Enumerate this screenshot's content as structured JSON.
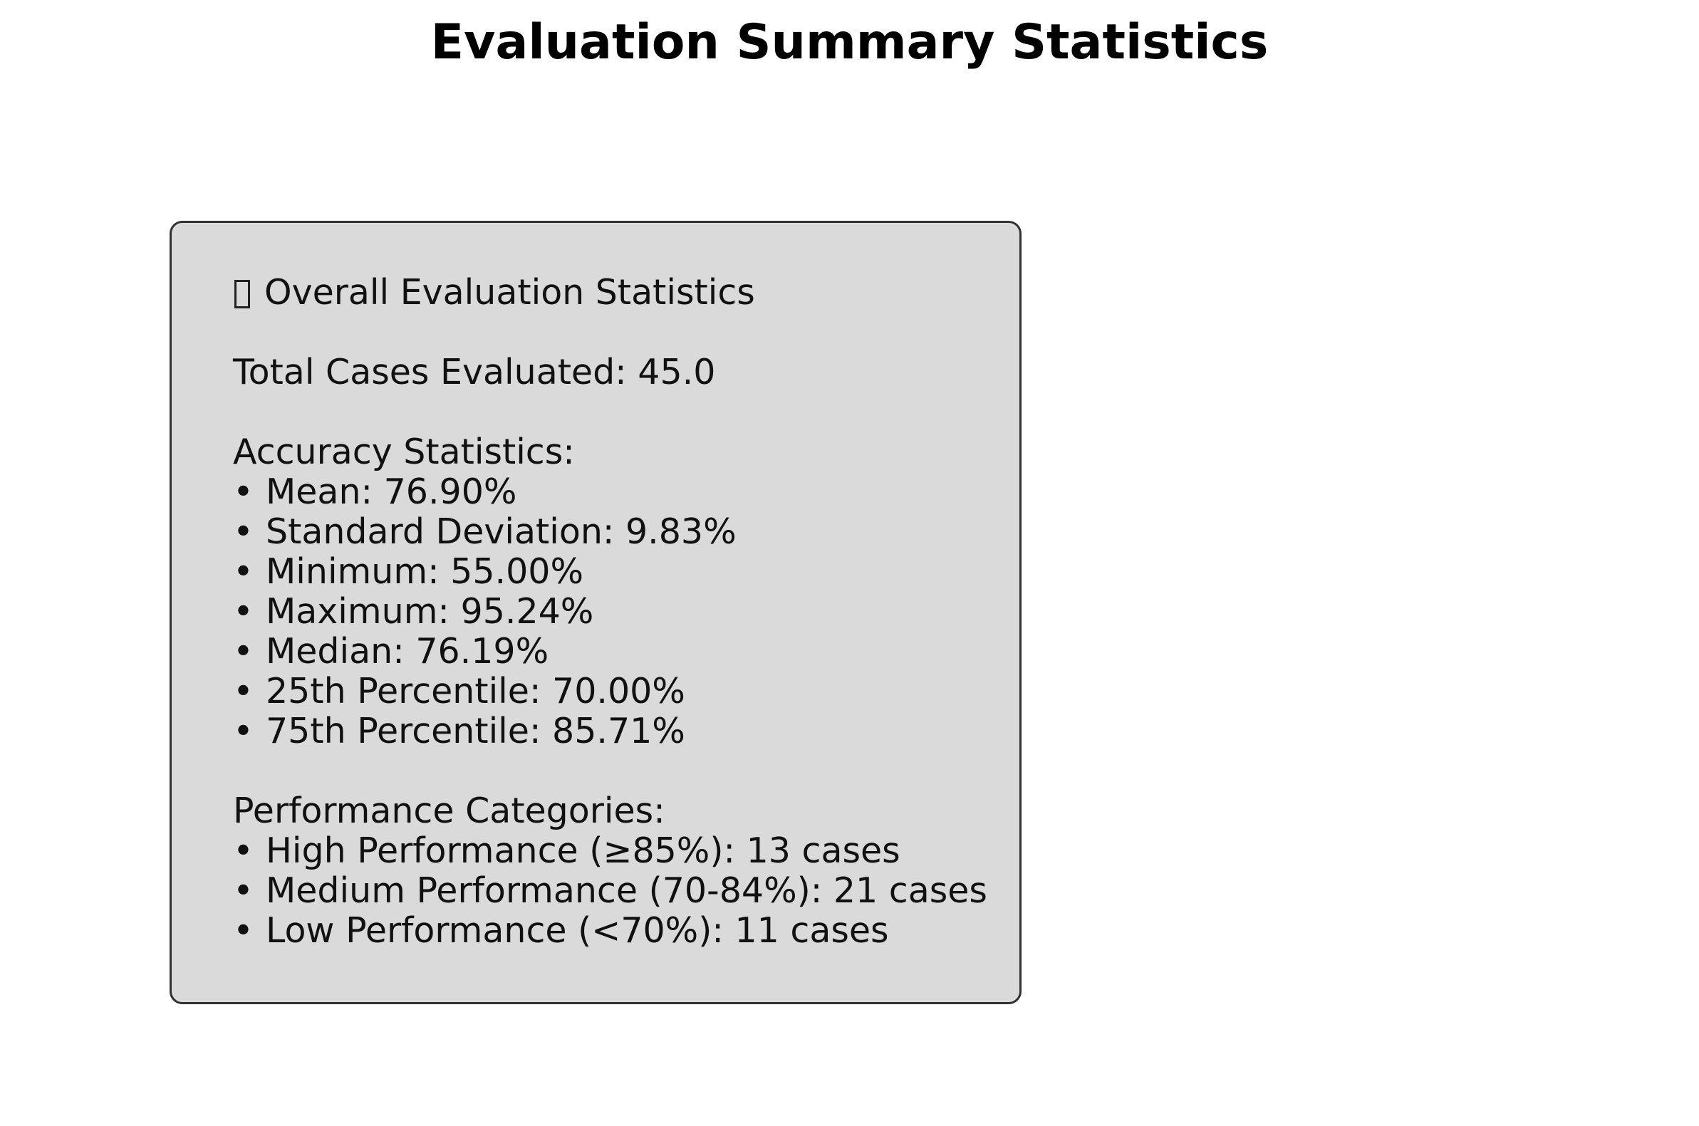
{
  "title": "Evaluation Summary Statistics",
  "box": {
    "heading": "Overall Evaluation Statistics",
    "heading_icon": "missing-glyph-icon",
    "total_cases_label": "Total Cases Evaluated:",
    "total_cases_value": "45.0",
    "accuracy": {
      "heading": "Accuracy Statistics:",
      "items": [
        {
          "label": "Mean:",
          "value": "76.90%"
        },
        {
          "label": "Standard Deviation:",
          "value": "9.83%"
        },
        {
          "label": "Minimum:",
          "value": "55.00%"
        },
        {
          "label": "Maximum:",
          "value": "95.24%"
        },
        {
          "label": "Median:",
          "value": "76.19%"
        },
        {
          "label": "25th Percentile:",
          "value": "70.00%"
        },
        {
          "label": "75th Percentile:",
          "value": "85.71%"
        }
      ]
    },
    "performance": {
      "heading": "Performance Categories:",
      "items": [
        {
          "label": "High Performance (≥85%):",
          "value": "13 cases"
        },
        {
          "label": "Medium Performance (70-84%):",
          "value": "21 cases"
        },
        {
          "label": "Low Performance (<70%):",
          "value": "11 cases"
        }
      ]
    },
    "bullet": "•",
    "background_color": "#dadada",
    "border_color": "#333333"
  }
}
